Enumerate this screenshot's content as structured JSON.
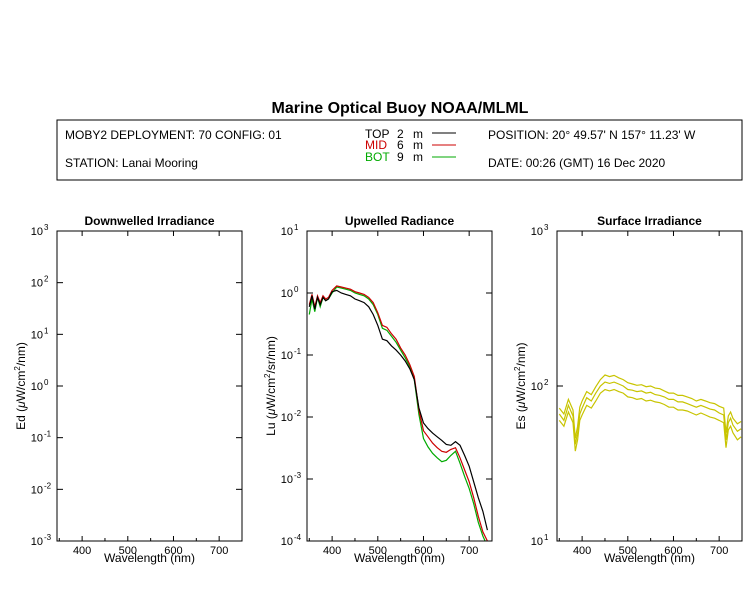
{
  "title": "Marine Optical Buoy NOAA/MLML",
  "info": {
    "deployment": "MOBY2 DEPLOYMENT: 70 CONFIG: 01",
    "station": "STATION: Lanai Mooring",
    "position": "POSITION: 20° 49.57' N   157° 11.23' W",
    "date": "DATE: 00:26 (GMT) 16 Dec 2020"
  },
  "legend": [
    {
      "name": "TOP",
      "depth": "2",
      "unit": "m",
      "color": "#000000"
    },
    {
      "name": "MID",
      "depth": "6",
      "unit": "m",
      "color": "#cc0000"
    },
    {
      "name": "BOT",
      "depth": "9",
      "unit": "m",
      "color": "#00aa00"
    }
  ],
  "chart_data": [
    {
      "type": "line",
      "title": "Downwelled Irradiance",
      "xlabel": "Wavelength (nm)",
      "ylabel_prefix": "Ed  (",
      "ylabel_mu": "μ",
      "ylabel_base": "W/cm",
      "ylabel_sup": "2",
      "ylabel_suffix": "/nm)",
      "xlim": [
        345,
        750
      ],
      "ylim": [
        0.001,
        1000
      ],
      "yscale": "log",
      "xticks": [
        400,
        500,
        600,
        700
      ],
      "yticks": [
        {
          "value": 0.001,
          "base": "10",
          "exp": "-3"
        },
        {
          "value": 0.01,
          "base": "10",
          "exp": "-2"
        },
        {
          "value": 0.1,
          "base": "10",
          "exp": "-1"
        },
        {
          "value": 1,
          "base": "10",
          "exp": "0"
        },
        {
          "value": 10,
          "base": "10",
          "exp": "1"
        },
        {
          "value": 100,
          "base": "10",
          "exp": "2"
        },
        {
          "value": 1000,
          "base": "10",
          "exp": "3"
        }
      ],
      "series": []
    },
    {
      "type": "line",
      "title": "Upwelled Radiance",
      "xlabel": "Wavelength (nm)",
      "ylabel_prefix": "Lu  (",
      "ylabel_mu": "μ",
      "ylabel_base": "W/cm",
      "ylabel_sup": "2",
      "ylabel_suffix": "/sr/nm)",
      "xlim": [
        345,
        750
      ],
      "ylim": [
        0.0001,
        10
      ],
      "yscale": "log",
      "xticks": [
        400,
        500,
        600,
        700
      ],
      "yticks": [
        {
          "value": 0.0001,
          "base": "10",
          "exp": "-4"
        },
        {
          "value": 0.001,
          "base": "10",
          "exp": "-3"
        },
        {
          "value": 0.01,
          "base": "10",
          "exp": "-2"
        },
        {
          "value": 0.1,
          "base": "10",
          "exp": "-1"
        },
        {
          "value": 1,
          "base": "10",
          "exp": "0"
        },
        {
          "value": 10,
          "base": "10",
          "exp": "1"
        }
      ],
      "series": [
        {
          "color": "#00aa00",
          "x": [
            350,
            356,
            362,
            368,
            374,
            380,
            386,
            392,
            400,
            410,
            420,
            430,
            440,
            450,
            460,
            470,
            480,
            490,
            500,
            510,
            520,
            530,
            540,
            550,
            560,
            570,
            580,
            590,
            600,
            610,
            620,
            630,
            640,
            650,
            660,
            670,
            680,
            690,
            700,
            710,
            720,
            730,
            735
          ],
          "y": [
            0.45,
            0.8,
            0.5,
            0.85,
            0.6,
            0.85,
            0.75,
            0.8,
            1.0,
            1.25,
            1.2,
            1.15,
            1.1,
            1.0,
            0.95,
            0.9,
            0.8,
            0.65,
            0.45,
            0.27,
            0.25,
            0.2,
            0.16,
            0.12,
            0.09,
            0.065,
            0.04,
            0.011,
            0.0045,
            0.0033,
            0.0026,
            0.0022,
            0.0019,
            0.002,
            0.0024,
            0.0028,
            0.0018,
            0.0011,
            0.0007,
            0.0004,
            0.0002,
            0.00012,
            0.0001
          ]
        },
        {
          "color": "#cc0000",
          "x": [
            350,
            356,
            362,
            368,
            374,
            380,
            386,
            392,
            400,
            410,
            420,
            430,
            440,
            450,
            460,
            470,
            480,
            490,
            500,
            510,
            520,
            530,
            540,
            550,
            560,
            570,
            580,
            590,
            600,
            610,
            620,
            630,
            640,
            650,
            660,
            670,
            680,
            690,
            700,
            710,
            720,
            730,
            740
          ],
          "y": [
            0.65,
            0.95,
            0.6,
            0.9,
            0.7,
            0.9,
            0.8,
            0.85,
            1.1,
            1.3,
            1.25,
            1.2,
            1.15,
            1.05,
            1.0,
            0.95,
            0.85,
            0.7,
            0.48,
            0.3,
            0.28,
            0.22,
            0.18,
            0.13,
            0.1,
            0.07,
            0.045,
            0.013,
            0.006,
            0.0048,
            0.0038,
            0.0032,
            0.0028,
            0.0027,
            0.003,
            0.0032,
            0.0022,
            0.0014,
            0.0009,
            0.0005,
            0.00025,
            0.00014,
            0.0001
          ]
        },
        {
          "color": "#000000",
          "x": [
            350,
            356,
            362,
            368,
            374,
            380,
            386,
            392,
            400,
            410,
            420,
            430,
            440,
            450,
            460,
            470,
            480,
            490,
            500,
            510,
            520,
            530,
            540,
            550,
            560,
            570,
            580,
            590,
            600,
            610,
            620,
            630,
            640,
            650,
            660,
            670,
            680,
            690,
            700,
            710,
            720,
            730,
            740
          ],
          "y": [
            0.6,
            0.9,
            0.55,
            0.85,
            0.65,
            0.85,
            0.75,
            0.8,
            1.05,
            1.1,
            1.0,
            0.95,
            0.9,
            0.8,
            0.75,
            0.7,
            0.6,
            0.45,
            0.3,
            0.18,
            0.17,
            0.14,
            0.12,
            0.1,
            0.08,
            0.06,
            0.04,
            0.014,
            0.008,
            0.0065,
            0.0055,
            0.0048,
            0.0042,
            0.0036,
            0.0035,
            0.004,
            0.0035,
            0.0024,
            0.0016,
            0.0009,
            0.0005,
            0.0003,
            0.00015
          ]
        }
      ]
    },
    {
      "type": "line",
      "title": "Surface Irradiance",
      "xlabel": "Wavelength (nm)",
      "ylabel_prefix": "Es  (",
      "ylabel_mu": "μ",
      "ylabel_base": "W/cm",
      "ylabel_sup": "2",
      "ylabel_suffix": "/nm)",
      "xlim": [
        345,
        750
      ],
      "ylim": [
        10,
        1000
      ],
      "yscale": "log",
      "xticks": [
        400,
        500,
        600,
        700
      ],
      "yticks": [
        {
          "value": 10,
          "base": "10",
          "exp": "1"
        },
        {
          "value": 100,
          "base": "10",
          "exp": "2"
        },
        {
          "value": 1000,
          "base": "10",
          "exp": "3"
        }
      ],
      "series": [
        {
          "color": "#c8c400",
          "x": [
            350,
            360,
            370,
            380,
            385,
            390,
            395,
            400,
            410,
            420,
            430,
            440,
            450,
            460,
            470,
            480,
            490,
            500,
            510,
            520,
            530,
            540,
            550,
            560,
            570,
            580,
            590,
            600,
            610,
            620,
            630,
            640,
            650,
            660,
            670,
            680,
            690,
            700,
            710,
            715,
            720,
            725,
            730,
            740,
            748
          ],
          "y": [
            60,
            55,
            68,
            58,
            38,
            45,
            60,
            65,
            75,
            72,
            80,
            90,
            95,
            93,
            95,
            92,
            90,
            85,
            84,
            82,
            83,
            80,
            81,
            79,
            78,
            76,
            73,
            73,
            70,
            70,
            69,
            67,
            65,
            67,
            65,
            63,
            62,
            60,
            58,
            40,
            52,
            55,
            50,
            45,
            47
          ]
        },
        {
          "color": "#c8c400",
          "x": [
            350,
            360,
            370,
            380,
            385,
            390,
            395,
            400,
            410,
            420,
            430,
            440,
            450,
            460,
            470,
            480,
            490,
            500,
            510,
            520,
            530,
            540,
            550,
            560,
            570,
            580,
            590,
            600,
            610,
            620,
            630,
            640,
            650,
            660,
            670,
            680,
            690,
            700,
            710,
            715,
            720,
            725,
            730,
            740,
            748
          ],
          "y": [
            66,
            60,
            75,
            64,
            42,
            50,
            66,
            72,
            84,
            80,
            90,
            100,
            106,
            104,
            106,
            103,
            100,
            95,
            94,
            92,
            93,
            90,
            91,
            88,
            87,
            85,
            82,
            82,
            79,
            79,
            77,
            75,
            73,
            75,
            73,
            71,
            70,
            67,
            65,
            45,
            58,
            62,
            56,
            51,
            53
          ]
        },
        {
          "color": "#c8c400",
          "x": [
            350,
            360,
            370,
            380,
            385,
            390,
            395,
            400,
            410,
            420,
            430,
            440,
            450,
            460,
            470,
            480,
            490,
            500,
            510,
            520,
            530,
            540,
            550,
            560,
            570,
            580,
            590,
            600,
            610,
            620,
            630,
            640,
            650,
            660,
            670,
            680,
            690,
            700,
            710,
            715,
            720,
            725,
            730,
            740,
            748
          ],
          "y": [
            72,
            66,
            82,
            70,
            46,
            55,
            73,
            80,
            92,
            88,
            99,
            110,
            118,
            115,
            117,
            113,
            110,
            105,
            103,
            101,
            102,
            99,
            100,
            97,
            96,
            93,
            90,
            90,
            87,
            87,
            85,
            83,
            80,
            82,
            80,
            78,
            77,
            74,
            72,
            50,
            64,
            68,
            62,
            57,
            59
          ]
        }
      ]
    }
  ]
}
